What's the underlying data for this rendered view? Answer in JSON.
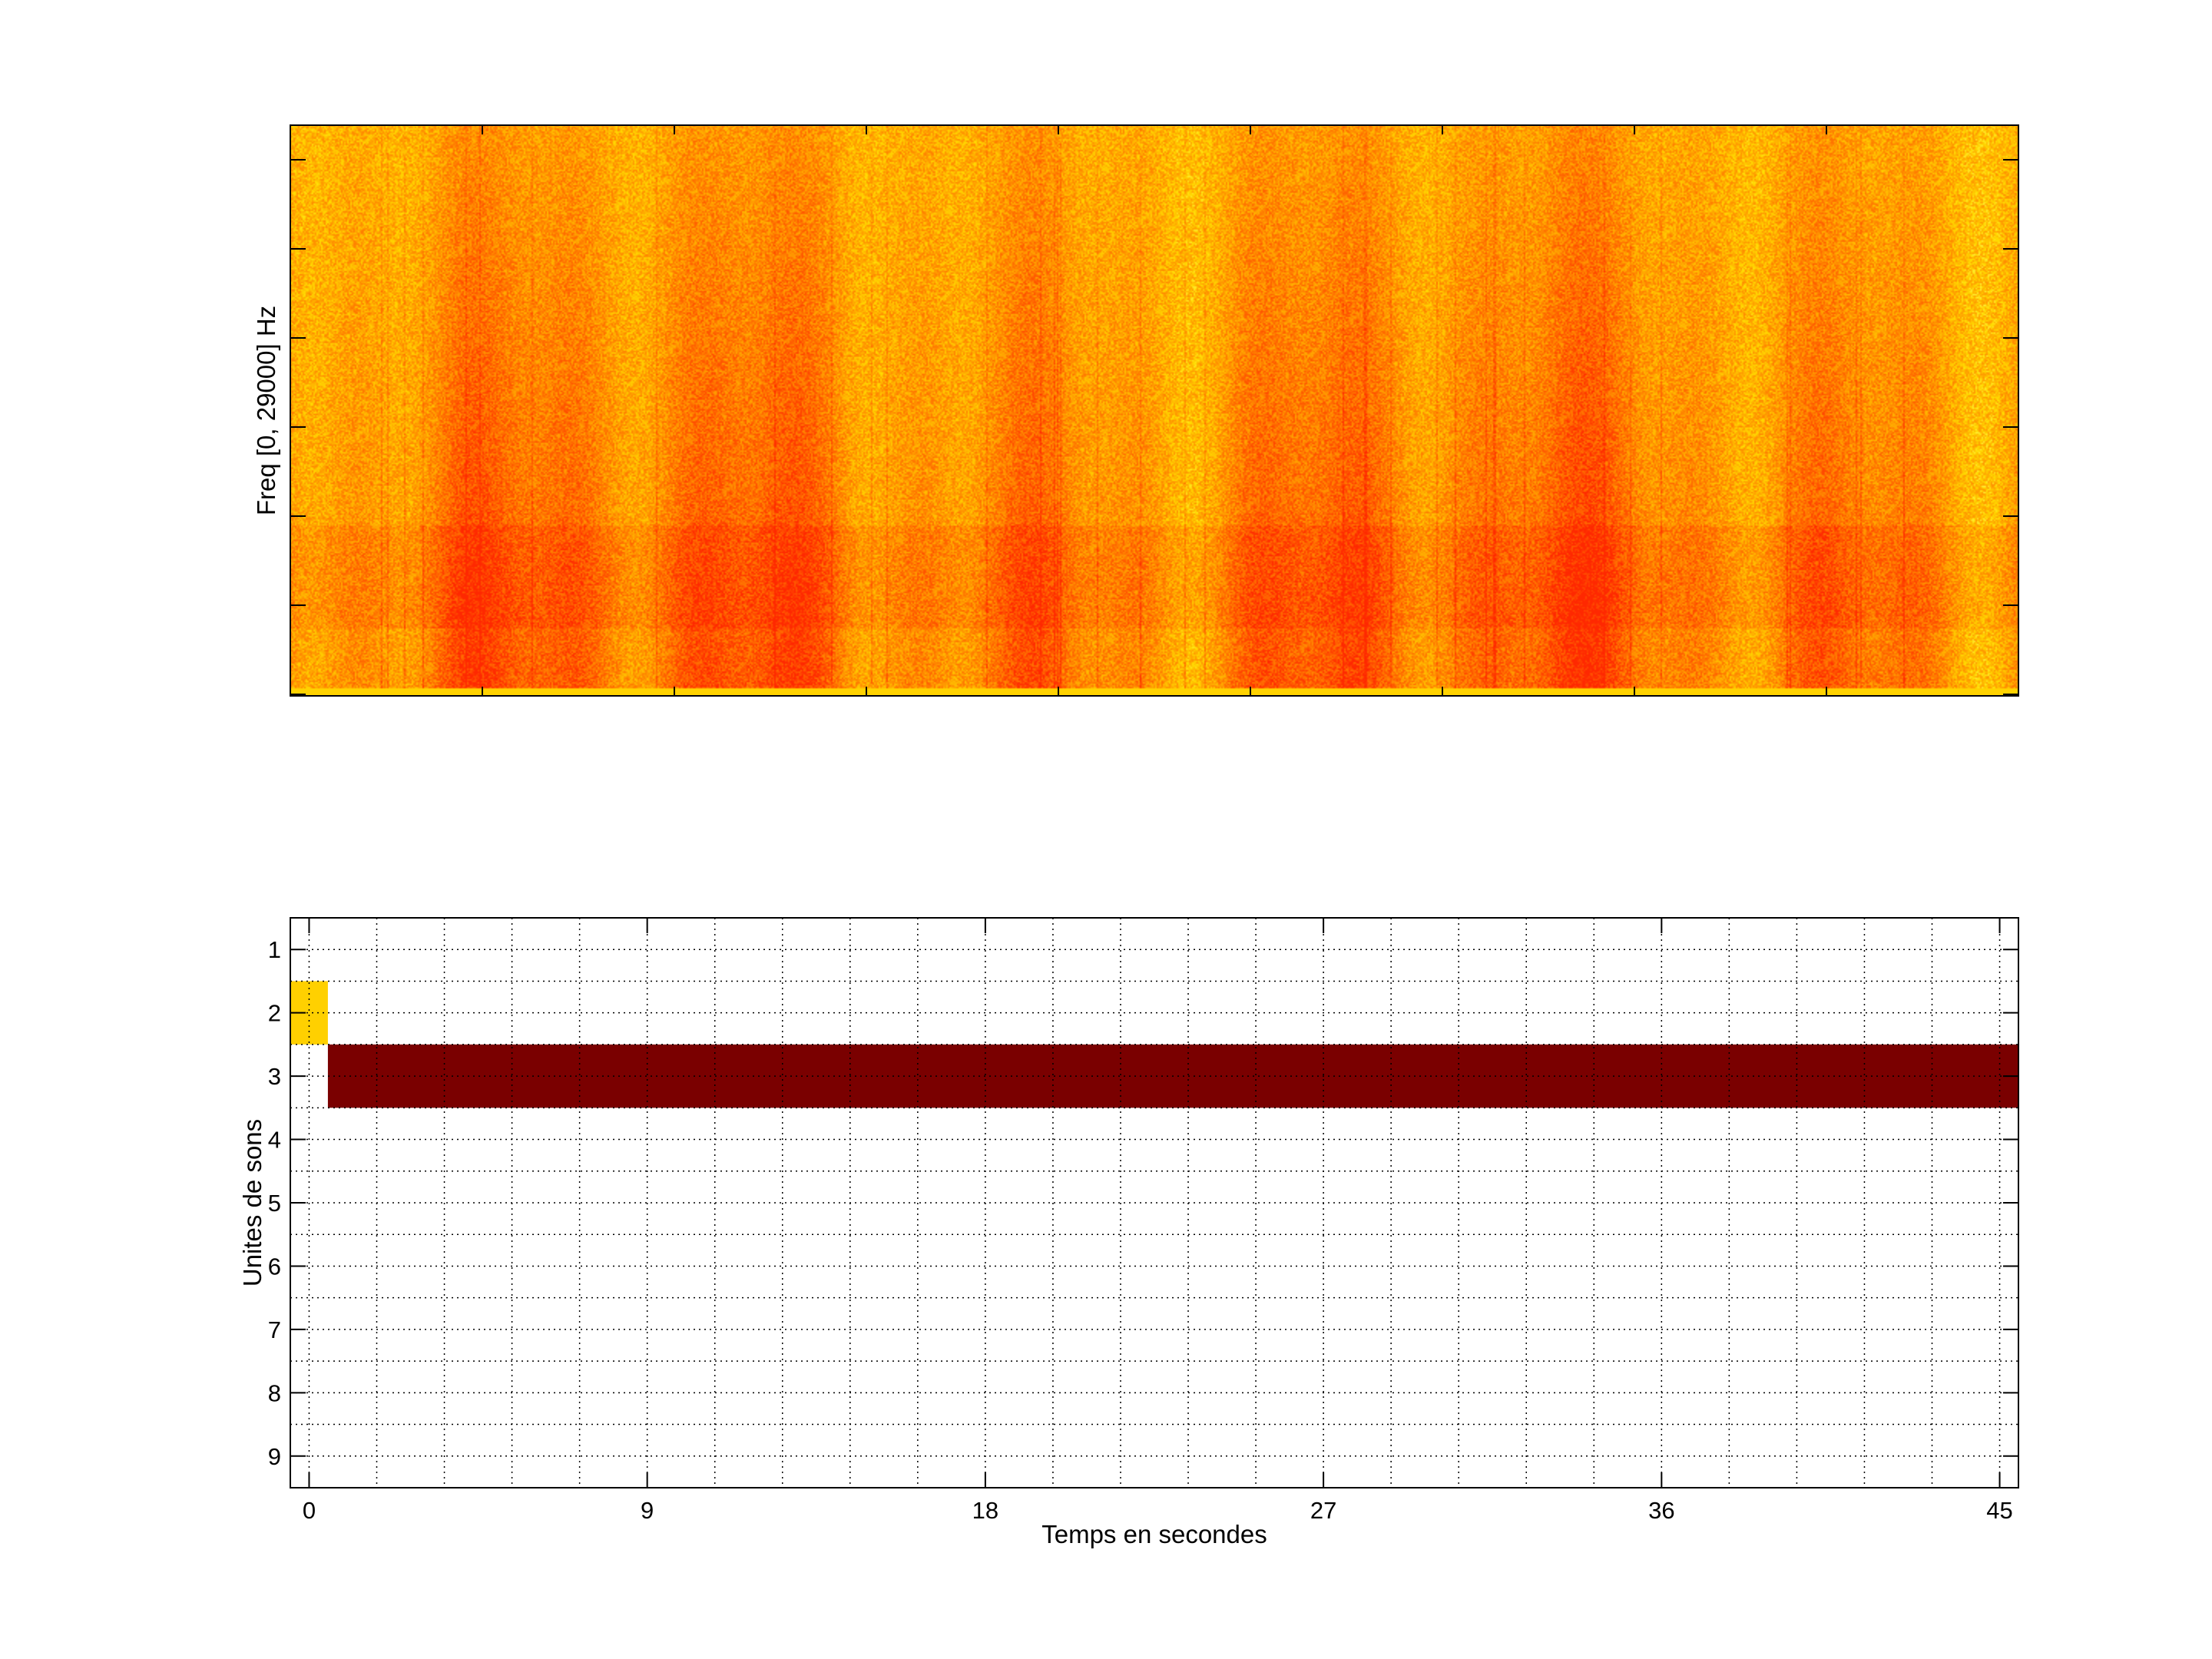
{
  "chart_data": [
    {
      "type": "heatmap",
      "title": "",
      "xlabel": "",
      "ylabel": "Freq [0, 29000] Hz",
      "colormap": "hot",
      "xlim": [
        -0.5,
        45.5
      ],
      "ylim": [
        0,
        29000
      ],
      "ytick_labels_shown": false,
      "xtick_labels_shown": false
    },
    {
      "type": "bar",
      "orientation": "horizontal-segments",
      "title": "",
      "xlabel": "Temps en secondes",
      "ylabel": "Unites de sons",
      "xlim": [
        -0.5,
        45.5
      ],
      "ylim": [
        0.5,
        9.5
      ],
      "y_reversed": true,
      "xticks": [
        0,
        9,
        18,
        27,
        36,
        45
      ],
      "yticks": [
        1,
        2,
        3,
        4,
        5,
        6,
        7,
        8,
        9
      ],
      "grid": true,
      "segments": [
        {
          "unit": 2,
          "start": -0.5,
          "end": 0.5,
          "color": "#FFD000"
        },
        {
          "unit": 3,
          "start": 0.5,
          "end": 45.5,
          "color": "#7A0000"
        }
      ]
    }
  ]
}
